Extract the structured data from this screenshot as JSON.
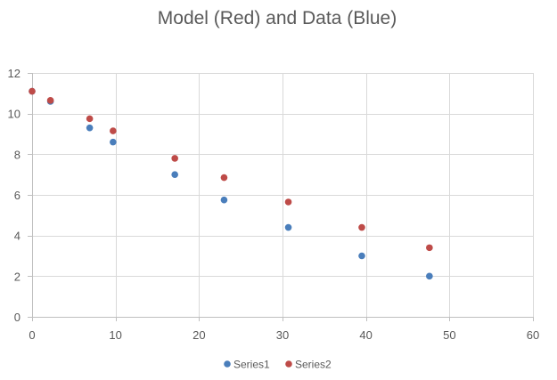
{
  "chart_data": {
    "type": "scatter",
    "title": "Model (Red) and Data (Blue)",
    "xlim": [
      0,
      60
    ],
    "ylim": [
      0,
      12
    ],
    "x_ticks": [
      "0",
      "10",
      "20",
      "30",
      "40",
      "50",
      "60"
    ],
    "y_ticks": [
      "0",
      "2",
      "4",
      "6",
      "8",
      "10",
      "12"
    ],
    "grid": true,
    "legend_position": "bottom",
    "series": [
      {
        "name": "Series1",
        "color": "#4a7ebb",
        "points": [
          {
            "x": 0,
            "y": 11.1
          },
          {
            "x": 2.2,
            "y": 10.6
          },
          {
            "x": 6.9,
            "y": 9.3
          },
          {
            "x": 9.7,
            "y": 8.6
          },
          {
            "x": 17.1,
            "y": 7.0
          },
          {
            "x": 23.0,
            "y": 5.75
          },
          {
            "x": 30.7,
            "y": 4.4
          },
          {
            "x": 39.5,
            "y": 3.0
          },
          {
            "x": 47.6,
            "y": 2.0
          }
        ]
      },
      {
        "name": "Series2",
        "color": "#be4b48",
        "points": [
          {
            "x": 0,
            "y": 11.1
          },
          {
            "x": 2.2,
            "y": 10.65
          },
          {
            "x": 6.9,
            "y": 9.75
          },
          {
            "x": 9.7,
            "y": 9.15
          },
          {
            "x": 17.1,
            "y": 7.8
          },
          {
            "x": 23.0,
            "y": 6.85
          },
          {
            "x": 30.7,
            "y": 5.65
          },
          {
            "x": 39.5,
            "y": 4.4
          },
          {
            "x": 47.6,
            "y": 3.4
          }
        ]
      }
    ]
  }
}
